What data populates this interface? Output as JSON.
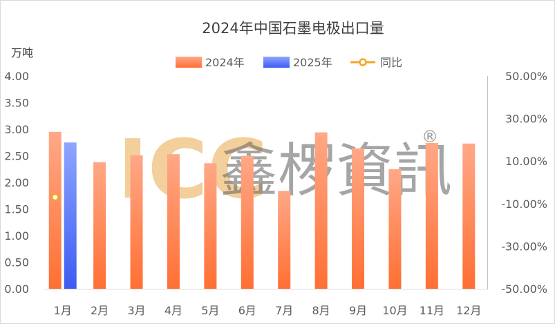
{
  "chart_data": {
    "type": "bar",
    "title": "2024年中国石墨电极出口量",
    "ylabel": "万吨",
    "ylim": [
      0,
      4
    ],
    "y_ticks": [
      "4.00",
      "3.50",
      "3.00",
      "2.50",
      "2.00",
      "1.50",
      "1.00",
      "0.50",
      "0.00"
    ],
    "y2lim": [
      -0.5,
      0.5
    ],
    "y2_ticks": [
      "50.00%",
      "30.00%",
      "10.00%",
      "-10.00%",
      "-30.00%",
      "-50.00%"
    ],
    "categories": [
      "1月",
      "2月",
      "3月",
      "4月",
      "5月",
      "6月",
      "7月",
      "8月",
      "9月",
      "10月",
      "11月",
      "12月"
    ],
    "series": [
      {
        "name": "2024年",
        "type": "bar",
        "axis": "left",
        "values": [
          2.95,
          2.38,
          2.51,
          2.53,
          2.36,
          2.5,
          1.84,
          2.94,
          2.64,
          2.25,
          2.74,
          2.73
        ]
      },
      {
        "name": "2025年",
        "type": "bar",
        "axis": "left",
        "values": [
          2.75,
          null,
          null,
          null,
          null,
          null,
          null,
          null,
          null,
          null,
          null,
          null
        ]
      },
      {
        "name": "同比",
        "type": "line",
        "axis": "right",
        "values": [
          -0.07,
          null,
          null,
          null,
          null,
          null,
          null,
          null,
          null,
          null,
          null,
          null
        ]
      }
    ],
    "legend_position": "top",
    "grid": false,
    "colors": {
      "s2024": "#ff7b45",
      "s2025": "#4a6ef5",
      "yoy": "#f5a623"
    }
  },
  "watermark": {
    "latin": "ICC",
    "cjk": "鑫椤資訊",
    "reg": "®"
  }
}
